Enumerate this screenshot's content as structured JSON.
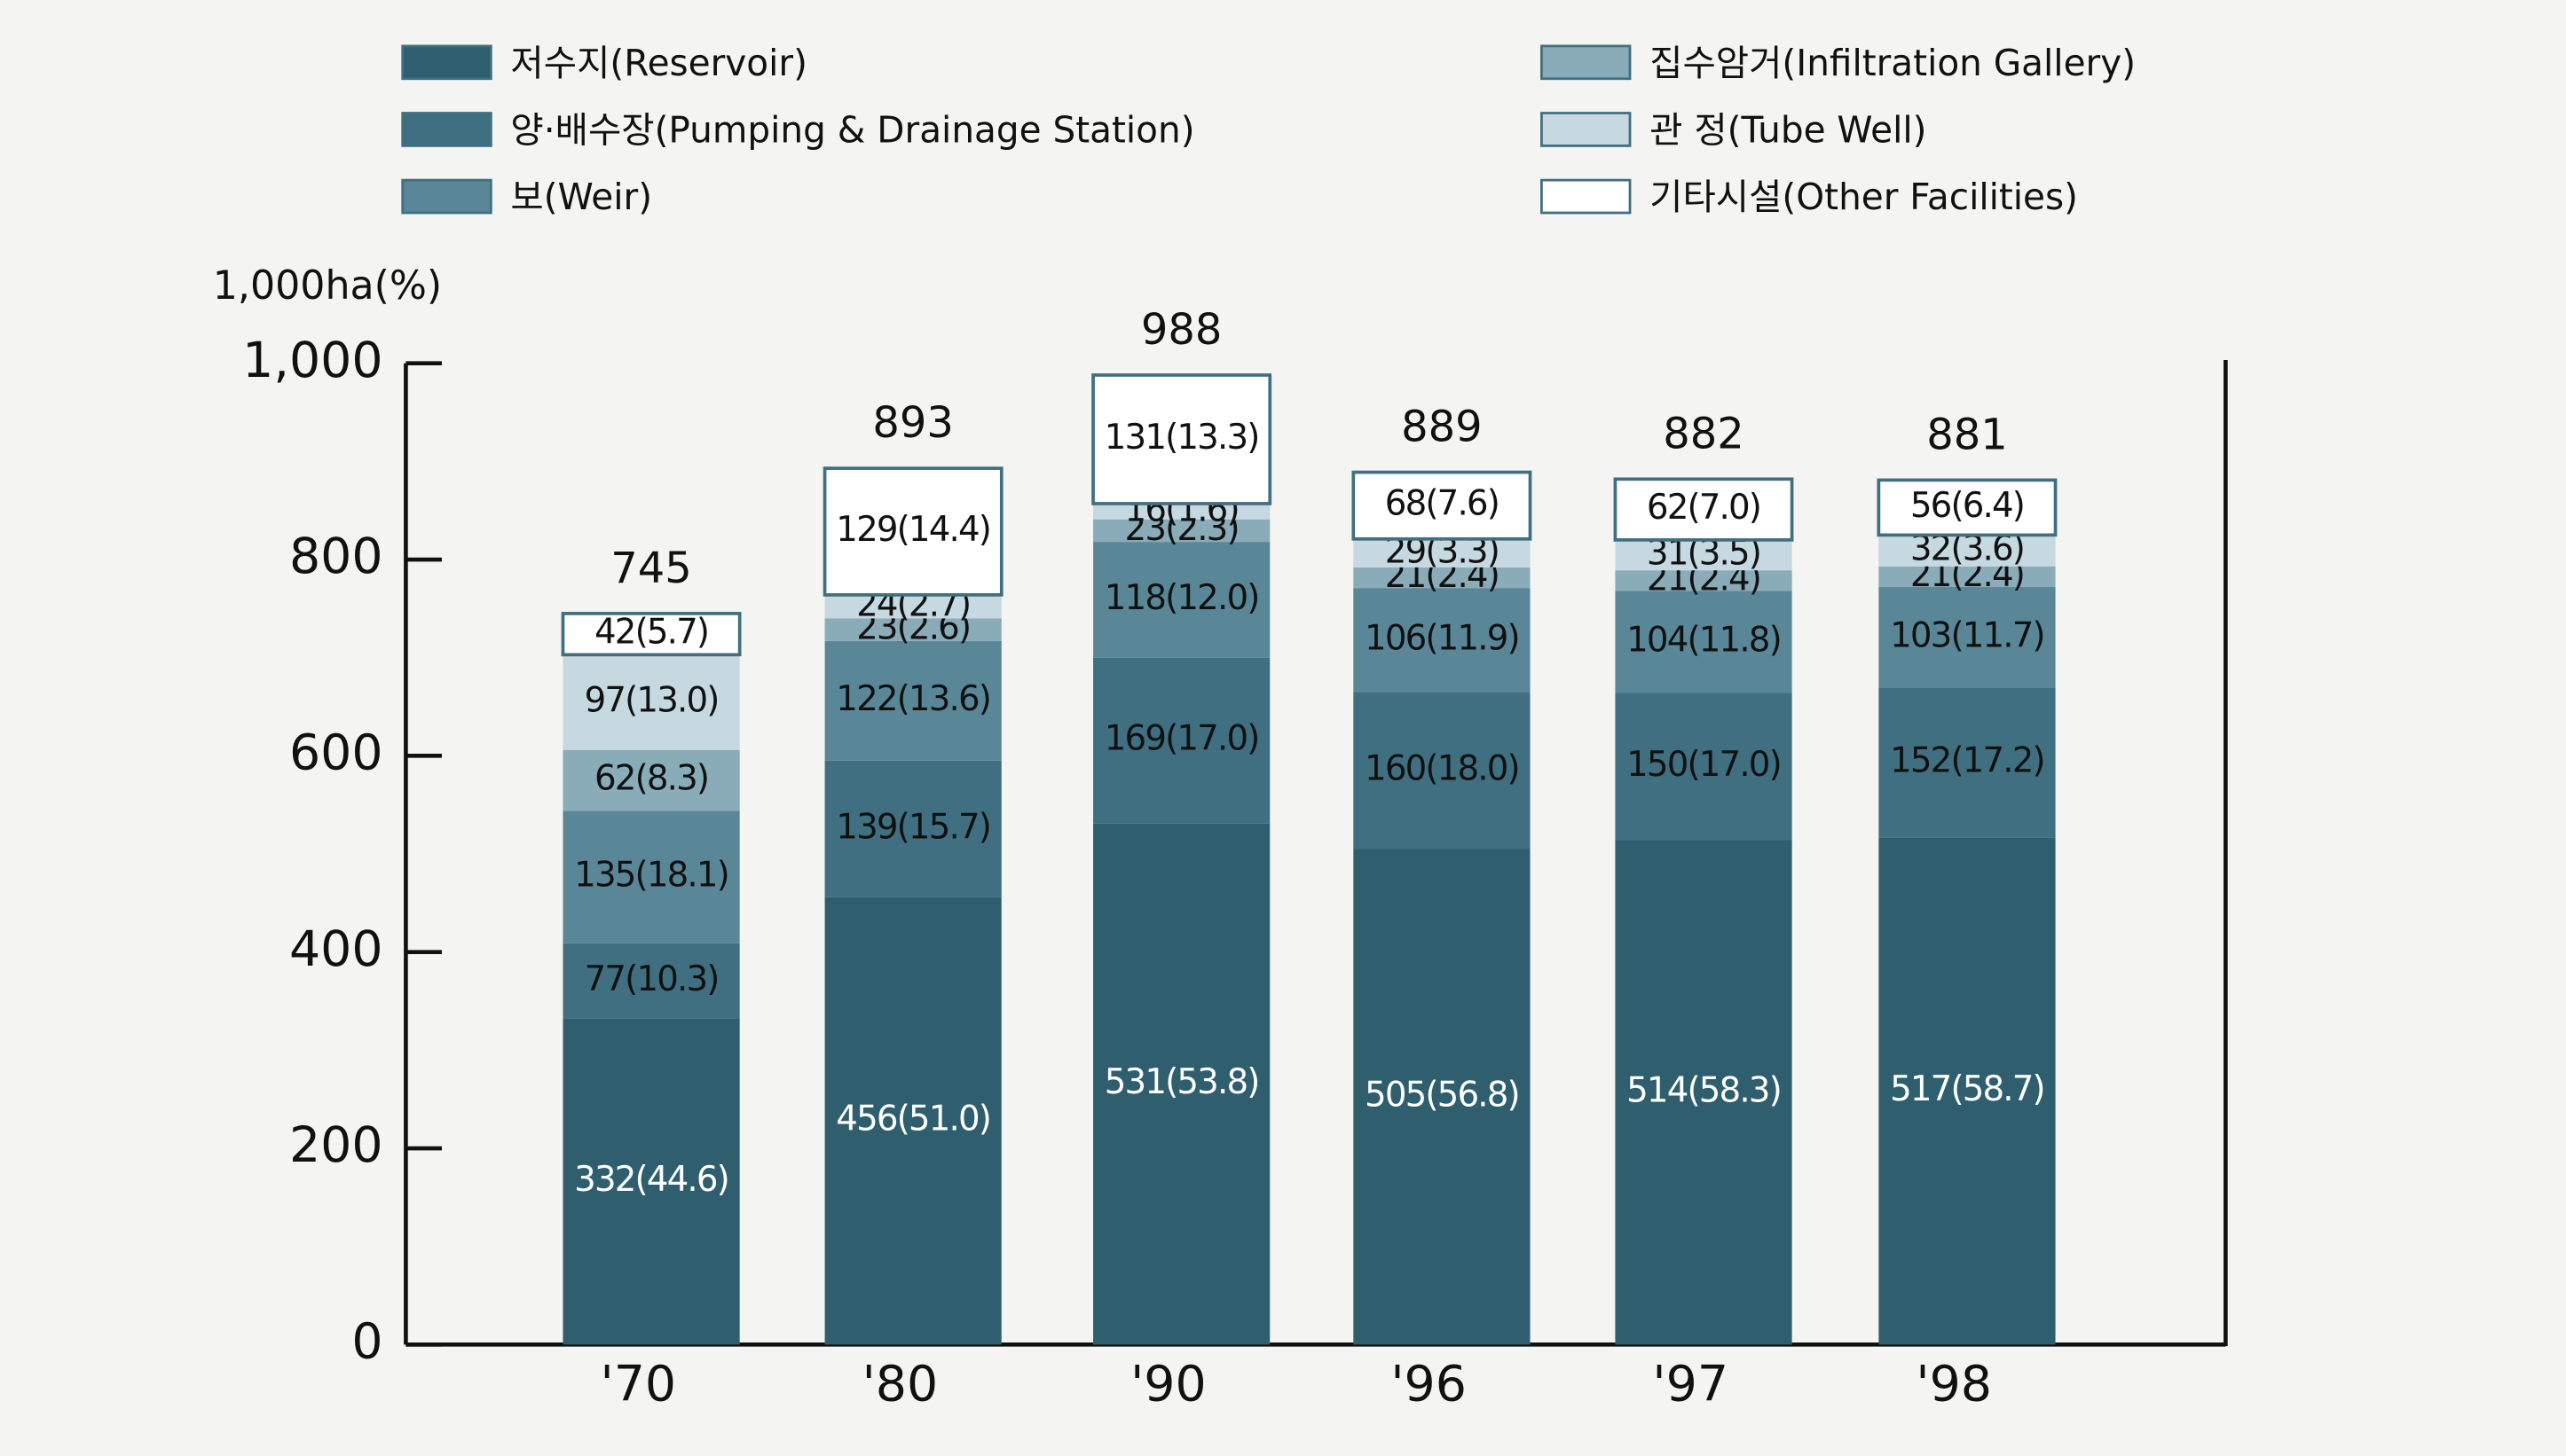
{
  "chart_data": {
    "type": "stacked_bar",
    "y_axis_label": "1,000ha(%)",
    "categories": [
      "'70",
      "'80",
      "'90",
      "'96",
      "'97",
      "'98"
    ],
    "series": [
      {
        "name": "저수지(Reservoir)",
        "color": "#2f5f6f",
        "text_color": "#ffffff",
        "values": [
          332,
          456,
          531,
          505,
          514,
          517
        ],
        "value_labels": [
          "332(44.6)",
          "456(51.0)",
          "531(53.8)",
          "505(56.8)",
          "514(58.3)",
          "517(58.7)"
        ]
      },
      {
        "name": "양·배수장(Pumping & Drainage Station)",
        "color": "#3f6f80",
        "text_color": "#111111",
        "values": [
          77,
          139,
          169,
          160,
          150,
          152
        ],
        "value_labels": [
          "77(10.3)",
          "139(15.7)",
          "169(17.0)",
          "160(18.0)",
          "150(17.0)",
          "152(17.2)"
        ]
      },
      {
        "name": "보(Weir)",
        "color": "#5a8797",
        "text_color": "#111111",
        "values": [
          135,
          122,
          118,
          106,
          104,
          103
        ],
        "value_labels": [
          "135(18.1)",
          "122(13.6)",
          "118(12.0)",
          "106(11.9)",
          "104(11.8)",
          "103(11.7)"
        ]
      },
      {
        "name": "집수암거(Infiltration Gallery)",
        "color": "#8aabb8",
        "text_color": "#111111",
        "values": [
          62,
          23,
          23,
          21,
          21,
          21
        ],
        "value_labels": [
          "62(8.3)",
          "23(2.6)",
          "23(2.3)",
          "21(2.4)",
          "21(2.4)",
          "21(2.4)"
        ]
      },
      {
        "name": "관    정(Tube Well)",
        "color": "#c6d8e0",
        "text_color": "#111111",
        "values": [
          97,
          24,
          16,
          29,
          31,
          32
        ],
        "value_labels": [
          "97(13.0)",
          "24(2.7)",
          "16(1.6)",
          "29(3.3)",
          "31(3.5)",
          "32(3.6)"
        ]
      },
      {
        "name": "기타시설(Other Facilities)",
        "color": "#ffffff",
        "text_color": "#111111",
        "values": [
          42,
          129,
          131,
          68,
          62,
          56
        ],
        "value_labels": [
          "42(5.7)",
          "129(14.4)",
          "131(13.3)",
          "68(7.6)",
          "62(7.0)",
          "56(6.4)"
        ]
      }
    ],
    "totals": [
      745,
      893,
      988,
      889,
      882,
      881
    ],
    "ylim": [
      0,
      1000
    ],
    "yticks": [
      0,
      200,
      400,
      600,
      800,
      {
        "value": 1000,
        "label": "1,000"
      }
    ]
  }
}
